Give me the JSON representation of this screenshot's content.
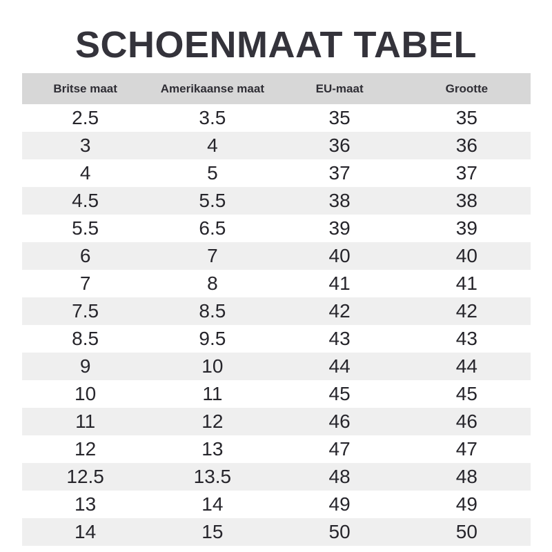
{
  "page": {
    "title": "SCHOENMAAT TABEL"
  },
  "table": {
    "columns": [
      "Britse maat",
      "Amerikaanse maat",
      "EU-maat",
      "Grootte"
    ],
    "rows": [
      [
        "2.5",
        "3.5",
        "35",
        "35"
      ],
      [
        "3",
        "4",
        "36",
        "36"
      ],
      [
        "4",
        "5",
        "37",
        "37"
      ],
      [
        "4.5",
        "5.5",
        "38",
        "38"
      ],
      [
        "5.5",
        "6.5",
        "39",
        "39"
      ],
      [
        "6",
        "7",
        "40",
        "40"
      ],
      [
        "7",
        "8",
        "41",
        "41"
      ],
      [
        "7.5",
        "8.5",
        "42",
        "42"
      ],
      [
        "8.5",
        "9.5",
        "43",
        "43"
      ],
      [
        "9",
        "10",
        "44",
        "44"
      ],
      [
        "10",
        "11",
        "45",
        "45"
      ],
      [
        "11",
        "12",
        "46",
        "46"
      ],
      [
        "12",
        "13",
        "47",
        "47"
      ],
      [
        "12.5",
        "13.5",
        "48",
        "48"
      ],
      [
        "13",
        "14",
        "49",
        "49"
      ],
      [
        "14",
        "15",
        "50",
        "50"
      ]
    ]
  },
  "colors": {
    "title_text": "#34333b",
    "header_bg": "#d7d7d7",
    "header_text": "#2e2d34",
    "row_alt_bg": "#efefef",
    "body_text": "#26252b",
    "page_bg": "#ffffff"
  }
}
